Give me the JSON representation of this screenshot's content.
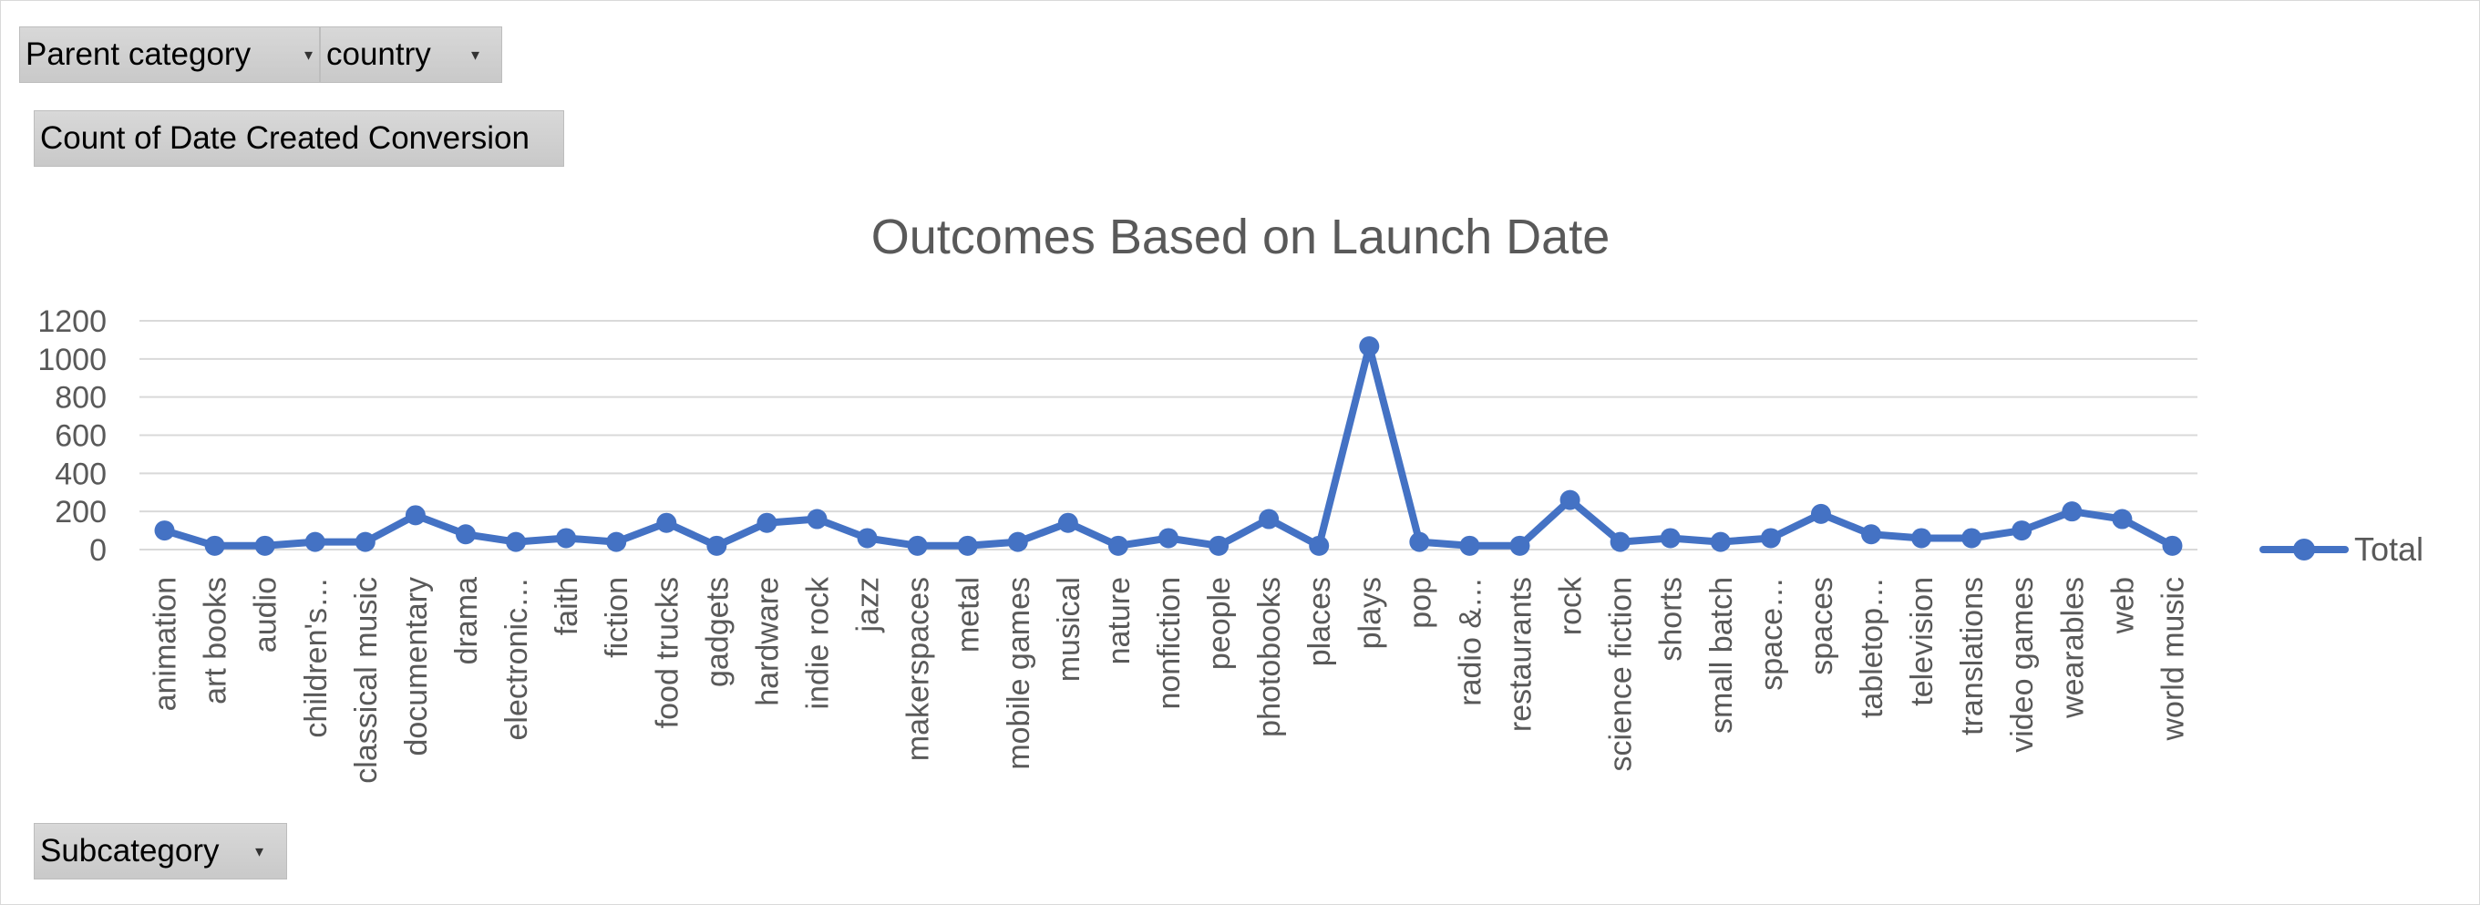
{
  "filters": {
    "parent_category": "Parent category",
    "country": "country",
    "values_field": "Count of Date Created Conversion",
    "subcategory": "Subcategory",
    "dropdown_glyph": "▾"
  },
  "chart_data": {
    "type": "line",
    "title": "Outcomes Based on Launch Date",
    "xlabel": "",
    "ylabel": "",
    "ylim": [
      0,
      1200
    ],
    "yticks": [
      0,
      200,
      400,
      600,
      800,
      1000,
      1200
    ],
    "grid": true,
    "legend": "right",
    "color": "#4472C4",
    "categories": [
      "animation",
      "art books",
      "audio",
      "children's…",
      "classical music",
      "documentary",
      "drama",
      "electronic…",
      "faith",
      "fiction",
      "food trucks",
      "gadgets",
      "hardware",
      "indie rock",
      "jazz",
      "makerspaces",
      "metal",
      "mobile games",
      "musical",
      "nature",
      "nonfiction",
      "people",
      "photobooks",
      "places",
      "plays",
      "pop",
      "radio &…",
      "restaurants",
      "rock",
      "science fiction",
      "shorts",
      "small batch",
      "space…",
      "spaces",
      "tabletop…",
      "television",
      "translations",
      "video games",
      "wearables",
      "web",
      "world music"
    ],
    "series": [
      {
        "name": "Total",
        "values": [
          100,
          20,
          20,
          40,
          40,
          180,
          80,
          40,
          60,
          40,
          140,
          20,
          140,
          160,
          60,
          20,
          20,
          40,
          140,
          20,
          60,
          20,
          160,
          20,
          1066,
          40,
          20,
          20,
          260,
          40,
          60,
          40,
          60,
          187,
          80,
          60,
          60,
          100,
          200,
          160,
          20
        ]
      }
    ]
  }
}
